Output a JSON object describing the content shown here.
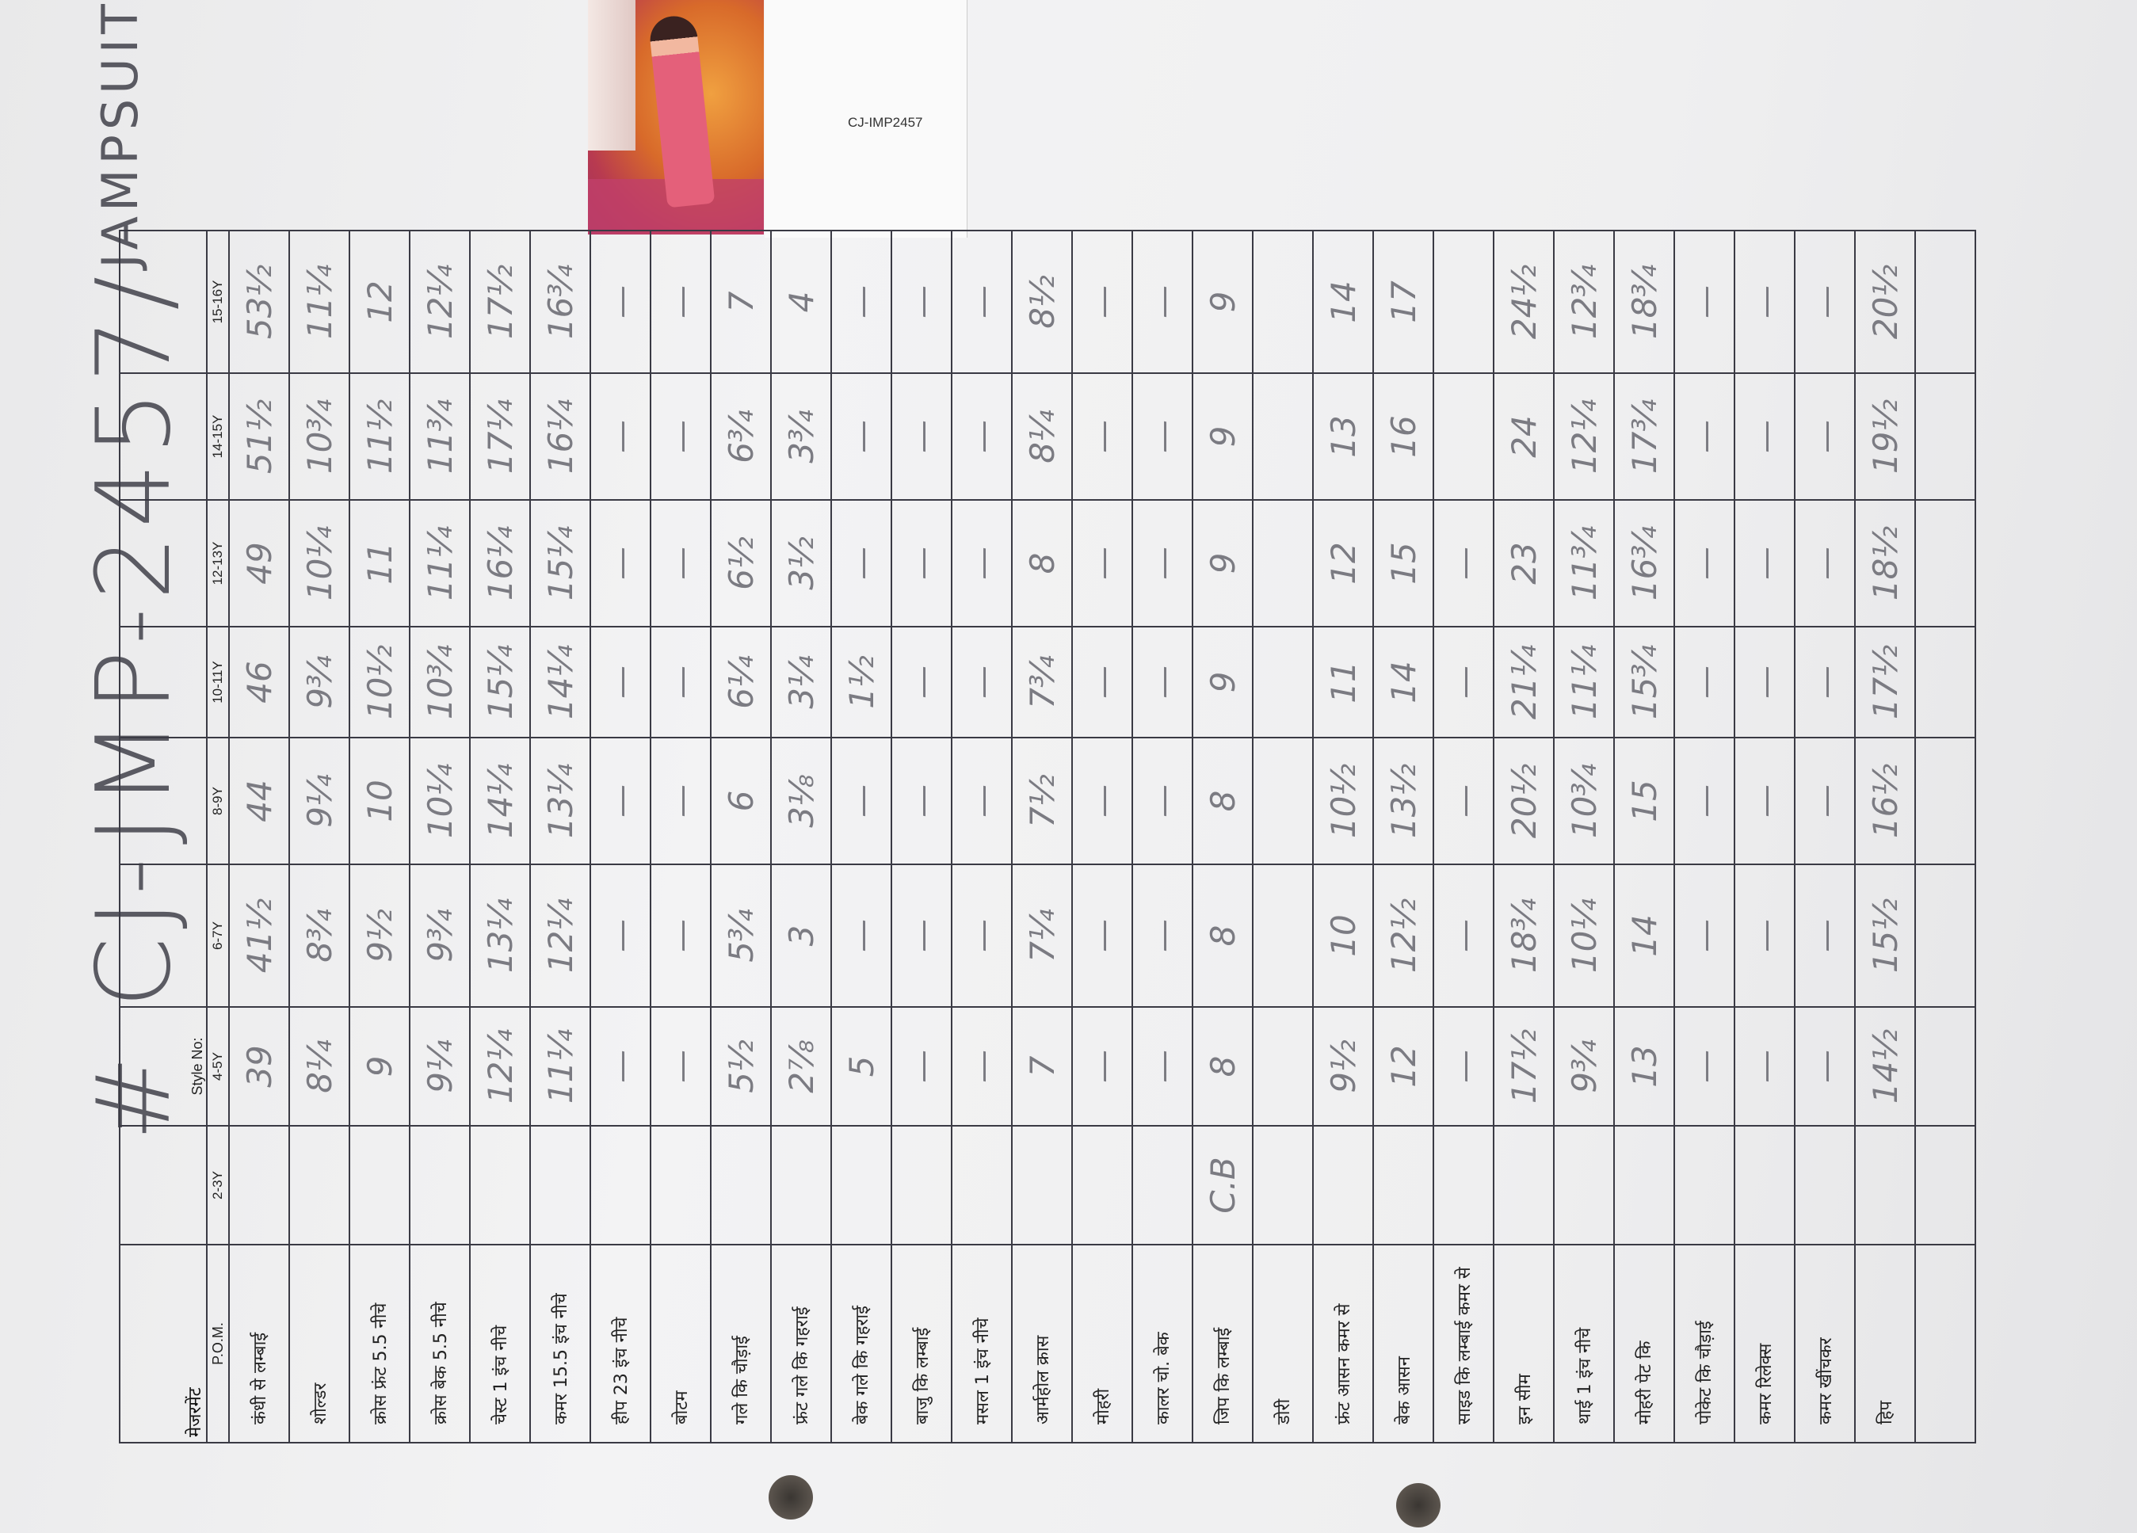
{
  "title": {
    "main": "# CJ-JMP-2457/",
    "sub": "JAMPSUIT"
  },
  "photo_label": "CJ-IMP2457",
  "table": {
    "corner_label": "मेजरमेंट",
    "pom_label": "P.O.M.",
    "style_no_label": "Style No:",
    "sizes": [
      "2-3Y",
      "4-5Y",
      "6-7Y",
      "8-9Y",
      "10-11Y",
      "12-13Y",
      "14-15Y",
      "15-16Y"
    ],
    "rows": [
      {
        "label": "कंधी से लम्बाई",
        "values": [
          "",
          "39",
          "41½",
          "44",
          "46",
          "49",
          "51½",
          "53½"
        ]
      },
      {
        "label": "शोल्डर",
        "values": [
          "",
          "8¼",
          "8¾",
          "9¼",
          "9¾",
          "10¼",
          "10¾",
          "11¼"
        ]
      },
      {
        "label": "क्रोस फ्रंट 5.5 नीचे",
        "values": [
          "",
          "9",
          "9½",
          "10",
          "10½",
          "11",
          "11½",
          "12"
        ]
      },
      {
        "label": "क्रोस बेक 5.5 नीचे",
        "values": [
          "",
          "9¼",
          "9¾",
          "10¼",
          "10¾",
          "11¼",
          "11¾",
          "12¼"
        ]
      },
      {
        "label": "चेस्ट 1 इंच नीचे",
        "values": [
          "",
          "12¼",
          "13¼",
          "14¼",
          "15¼",
          "16¼",
          "17¼",
          "17½"
        ]
      },
      {
        "label": "कमर 15.5 इंच नीचे",
        "values": [
          "",
          "11¼",
          "12¼",
          "13¼",
          "14¼",
          "15¼",
          "16¼",
          "16¾"
        ]
      },
      {
        "label": "हीप 23 इंच नीचे",
        "values": [
          "",
          "—",
          "—",
          "—",
          "—",
          "—",
          "—",
          "—"
        ]
      },
      {
        "label": "बोटम",
        "values": [
          "",
          "—",
          "—",
          "—",
          "—",
          "—",
          "—",
          "—"
        ]
      },
      {
        "label": "गले कि चौड़ाई",
        "values": [
          "",
          "5½",
          "5¾",
          "6",
          "6¼",
          "6½",
          "6¾",
          "7"
        ]
      },
      {
        "label": "फ्रंट गले कि गहराई",
        "values": [
          "",
          "2⅞",
          "3",
          "3⅛",
          "3¼",
          "3½",
          "3¾",
          "4"
        ]
      },
      {
        "label": "बेक गले कि गहराई",
        "values": [
          "",
          "5",
          "—",
          "—",
          "1½",
          "—",
          "—",
          "—"
        ]
      },
      {
        "label": "बाजु कि लम्बाई",
        "values": [
          "",
          "—",
          "—",
          "—",
          "—",
          "—",
          "—",
          "—"
        ]
      },
      {
        "label": "मसल 1 इंच नीचे",
        "values": [
          "",
          "—",
          "—",
          "—",
          "—",
          "—",
          "—",
          "—"
        ]
      },
      {
        "label": "आर्महोल क्रास",
        "values": [
          "",
          "7",
          "7¼",
          "7½",
          "7¾",
          "8",
          "8¼",
          "8½"
        ]
      },
      {
        "label": "मोहरी",
        "values": [
          "",
          "—",
          "—",
          "—",
          "—",
          "—",
          "—",
          "—"
        ]
      },
      {
        "label": "कालर चो. बेक",
        "values": [
          "",
          "—",
          "—",
          "—",
          "—",
          "—",
          "—",
          "—"
        ]
      },
      {
        "label": "जिप कि लम्बाई",
        "values": [
          "C.B",
          "8",
          "8",
          "8",
          "9",
          "9",
          "9",
          "9"
        ]
      },
      {
        "label": "डोरी",
        "values": [
          "",
          "",
          "",
          "",
          "",
          "",
          "",
          ""
        ]
      },
      {
        "label": "फ्रंट आसन कमर से",
        "values": [
          "",
          "9½",
          "10",
          "10½",
          "11",
          "12",
          "13",
          "14"
        ]
      },
      {
        "label": "बेक आसन",
        "values": [
          "",
          "12",
          "12½",
          "13½",
          "14",
          "15",
          "16",
          "17"
        ]
      },
      {
        "label": "साइड कि लम्बाई कमर से",
        "values": [
          "",
          "—",
          "—",
          "—",
          "—",
          "—",
          "",
          ""
        ]
      },
      {
        "label": "इन सीम",
        "values": [
          "",
          "17½",
          "18¾",
          "20½",
          "21¼",
          "23",
          "24",
          "24½"
        ]
      },
      {
        "label": "थाई 1 इंच नीचे",
        "values": [
          "",
          "9¾",
          "10¼",
          "10¾",
          "11¼",
          "11¾",
          "12¼",
          "12¾"
        ]
      },
      {
        "label": "मोहरी पेट कि",
        "values": [
          "",
          "13",
          "14",
          "15",
          "15¾",
          "16¾",
          "17¾",
          "18¾"
        ]
      },
      {
        "label": "पोकेट कि चौड़ाई",
        "values": [
          "",
          "—",
          "—",
          "—",
          "—",
          "—",
          "—",
          "—"
        ]
      },
      {
        "label": "कमर रिलेक्स",
        "values": [
          "",
          "—",
          "—",
          "—",
          "—",
          "—",
          "—",
          "—"
        ]
      },
      {
        "label": "कमर खींचकर",
        "values": [
          "",
          "—",
          "—",
          "—",
          "—",
          "—",
          "—",
          "—"
        ]
      },
      {
        "label": "हिप",
        "values": [
          "",
          "14½",
          "15½",
          "16½",
          "17½",
          "18½",
          "19½",
          "20½"
        ]
      },
      {
        "label": "",
        "values": [
          "",
          "",
          "",
          "",
          "",
          "",
          "",
          ""
        ]
      }
    ]
  }
}
